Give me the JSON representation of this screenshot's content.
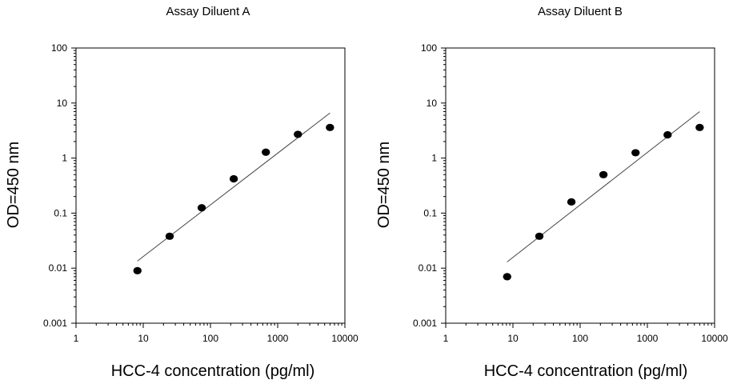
{
  "chart_data": [
    {
      "type": "scatter",
      "title": "Assay Diluent A",
      "xlabel": "HCC-4 concentration (pg/ml)",
      "ylabel": "OD=450 nm",
      "x_scale": "log",
      "y_scale": "log",
      "xlim": [
        1,
        10000
      ],
      "ylim": [
        0.001,
        100
      ],
      "x_ticks": [
        "1",
        "10",
        "100",
        "1000",
        "10000"
      ],
      "y_ticks": [
        "0.001",
        "0.01",
        "0.1",
        "1",
        "10",
        "100"
      ],
      "grid": false,
      "series": [
        {
          "x": [
            8.2,
            24.7,
            74.1,
            222,
            667,
            2000,
            6000
          ],
          "y": [
            0.009,
            0.038,
            0.125,
            0.42,
            1.28,
            2.7,
            3.6
          ],
          "color": "#000000"
        }
      ],
      "fit_line": {
        "x": [
          8.2,
          6000
        ],
        "y": [
          0.0135,
          6.6
        ],
        "color": "#444444"
      }
    },
    {
      "type": "scatter",
      "title": "Assay Diluent B",
      "xlabel": "HCC-4 concentration (pg/ml)",
      "ylabel": "OD=450 nm",
      "x_scale": "log",
      "y_scale": "log",
      "xlim": [
        1,
        10000
      ],
      "ylim": [
        0.001,
        100
      ],
      "x_ticks": [
        "1",
        "10",
        "100",
        "1000",
        "10000"
      ],
      "y_ticks": [
        "0.001",
        "0.01",
        "0.1",
        "1",
        "10",
        "100"
      ],
      "grid": false,
      "series": [
        {
          "x": [
            8.2,
            24.7,
            74.1,
            222,
            667,
            2000,
            6000
          ],
          "y": [
            0.007,
            0.038,
            0.16,
            0.5,
            1.25,
            2.65,
            3.6
          ],
          "color": "#000000"
        }
      ],
      "fit_line": {
        "x": [
          8.2,
          6000
        ],
        "y": [
          0.013,
          7.0
        ],
        "color": "#444444"
      }
    }
  ]
}
